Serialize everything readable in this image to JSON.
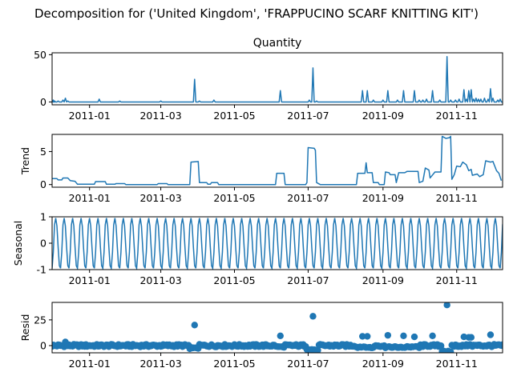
{
  "figure_title": "Decomposition for ('United Kingdom', 'FRAPPUCINO SCARF KNITTING KIT')",
  "colors": {
    "line": "#1f77b4",
    "marker": "#1f77b4",
    "axis": "#000000"
  },
  "chart_data": [
    {
      "type": "line",
      "title": "Quantity",
      "ylabel": "",
      "x_range": [
        "2010-12-01",
        "2011-12-09"
      ],
      "ylim": [
        -3,
        52
      ],
      "yticks": [
        0,
        50
      ],
      "xticks": [
        "2011-01",
        "2011-03",
        "2011-05",
        "2011-07",
        "2011-09",
        "2011-11"
      ],
      "baseline": 0,
      "series": [
        {
          "name": "",
          "spikes": [
            {
              "x": "2010-12-02",
              "y": 2
            },
            {
              "x": "2010-12-03",
              "y": 1
            },
            {
              "x": "2010-12-06",
              "y": 1
            },
            {
              "x": "2010-12-10",
              "y": 2
            },
            {
              "x": "2010-12-12",
              "y": 4
            },
            {
              "x": "2010-12-14",
              "y": 1
            },
            {
              "x": "2011-01-09",
              "y": 3
            },
            {
              "x": "2011-01-26",
              "y": 1
            },
            {
              "x": "2011-03-01",
              "y": 1
            },
            {
              "x": "2011-03-29",
              "y": 24
            },
            {
              "x": "2011-04-02",
              "y": 1
            },
            {
              "x": "2011-04-14",
              "y": 2
            },
            {
              "x": "2011-06-08",
              "y": 12
            },
            {
              "x": "2011-07-02",
              "y": 2
            },
            {
              "x": "2011-07-05",
              "y": 36
            },
            {
              "x": "2011-07-08",
              "y": 1
            },
            {
              "x": "2011-08-15",
              "y": 12
            },
            {
              "x": "2011-08-19",
              "y": 12
            },
            {
              "x": "2011-08-24",
              "y": 2
            },
            {
              "x": "2011-09-01",
              "y": 2
            },
            {
              "x": "2011-09-05",
              "y": 12
            },
            {
              "x": "2011-09-13",
              "y": 2
            },
            {
              "x": "2011-09-18",
              "y": 12
            },
            {
              "x": "2011-09-27",
              "y": 12
            },
            {
              "x": "2011-10-01",
              "y": 2
            },
            {
              "x": "2011-10-04",
              "y": 2
            },
            {
              "x": "2011-10-07",
              "y": 3
            },
            {
              "x": "2011-10-12",
              "y": 12
            },
            {
              "x": "2011-10-18",
              "y": 2
            },
            {
              "x": "2011-10-24",
              "y": 48
            },
            {
              "x": "2011-10-27",
              "y": 2
            },
            {
              "x": "2011-10-31",
              "y": 2
            },
            {
              "x": "2011-11-03",
              "y": 3
            },
            {
              "x": "2011-11-07",
              "y": 13
            },
            {
              "x": "2011-11-09",
              "y": 3
            },
            {
              "x": "2011-11-11",
              "y": 12
            },
            {
              "x": "2011-11-13",
              "y": 13
            },
            {
              "x": "2011-11-15",
              "y": 3
            },
            {
              "x": "2011-11-17",
              "y": 4
            },
            {
              "x": "2011-11-19",
              "y": 3
            },
            {
              "x": "2011-11-21",
              "y": 3
            },
            {
              "x": "2011-11-24",
              "y": 4
            },
            {
              "x": "2011-11-27",
              "y": 3
            },
            {
              "x": "2011-11-29",
              "y": 14
            },
            {
              "x": "2011-12-01",
              "y": 4
            },
            {
              "x": "2011-12-05",
              "y": 2
            },
            {
              "x": "2011-12-07",
              "y": 3
            }
          ]
        }
      ]
    },
    {
      "type": "line",
      "title": "",
      "ylabel": "Trend",
      "x_range": [
        "2010-12-01",
        "2011-12-09"
      ],
      "ylim": [
        -0.4,
        7.6
      ],
      "yticks": [
        0,
        5
      ],
      "xticks": [
        "2011-01",
        "2011-03",
        "2011-05",
        "2011-07",
        "2011-09",
        "2011-11"
      ],
      "series": [
        {
          "name": "",
          "points": [
            [
              "2010-12-01",
              0.9
            ],
            [
              "2010-12-05",
              0.9
            ],
            [
              "2010-12-06",
              0.7
            ],
            [
              "2010-12-09",
              0.7
            ],
            [
              "2010-12-10",
              1.0
            ],
            [
              "2010-12-14",
              1.0
            ],
            [
              "2010-12-16",
              0.6
            ],
            [
              "2010-12-20",
              0.5
            ],
            [
              "2010-12-22",
              0.05
            ],
            [
              "2011-01-05",
              0.05
            ],
            [
              "2011-01-06",
              0.45
            ],
            [
              "2011-01-14",
              0.45
            ],
            [
              "2011-01-15",
              0.05
            ],
            [
              "2011-01-22",
              0.05
            ],
            [
              "2011-01-23",
              0.15
            ],
            [
              "2011-01-30",
              0.15
            ],
            [
              "2011-01-31",
              0.0
            ],
            [
              "2011-02-26",
              0.0
            ],
            [
              "2011-02-27",
              0.15
            ],
            [
              "2011-03-06",
              0.15
            ],
            [
              "2011-03-07",
              0.0
            ],
            [
              "2011-03-25",
              0.0
            ],
            [
              "2011-03-26",
              3.4
            ],
            [
              "2011-04-01",
              3.5
            ],
            [
              "2011-04-02",
              0.3
            ],
            [
              "2011-04-08",
              0.3
            ],
            [
              "2011-04-09",
              0.05
            ],
            [
              "2011-04-11",
              0.05
            ],
            [
              "2011-04-12",
              0.3
            ],
            [
              "2011-04-17",
              0.3
            ],
            [
              "2011-04-18",
              0.0
            ],
            [
              "2011-06-04",
              0.0
            ],
            [
              "2011-06-05",
              1.7
            ],
            [
              "2011-06-11",
              1.7
            ],
            [
              "2011-06-12",
              0.0
            ],
            [
              "2011-06-29",
              0.0
            ],
            [
              "2011-06-30",
              0.3
            ],
            [
              "2011-07-01",
              5.6
            ],
            [
              "2011-07-06",
              5.5
            ],
            [
              "2011-07-07",
              5.2
            ],
            [
              "2011-07-08",
              0.3
            ],
            [
              "2011-07-11",
              0.0
            ],
            [
              "2011-08-10",
              0.0
            ],
            [
              "2011-08-11",
              1.7
            ],
            [
              "2011-08-17",
              1.7
            ],
            [
              "2011-08-18",
              3.3
            ],
            [
              "2011-08-19",
              1.8
            ],
            [
              "2011-08-23",
              1.8
            ],
            [
              "2011-08-24",
              0.3
            ],
            [
              "2011-08-28",
              0.3
            ],
            [
              "2011-08-29",
              0.0
            ],
            [
              "2011-09-02",
              0.0
            ],
            [
              "2011-09-03",
              1.9
            ],
            [
              "2011-09-06",
              1.8
            ],
            [
              "2011-09-07",
              1.5
            ],
            [
              "2011-09-11",
              1.5
            ],
            [
              "2011-09-12",
              0.3
            ],
            [
              "2011-09-14",
              1.8
            ],
            [
              "2011-09-19",
              1.8
            ],
            [
              "2011-09-21",
              2.0
            ],
            [
              "2011-09-30",
              2.0
            ],
            [
              "2011-10-01",
              0.3
            ],
            [
              "2011-10-04",
              0.5
            ],
            [
              "2011-10-06",
              2.5
            ],
            [
              "2011-10-09",
              2.2
            ],
            [
              "2011-10-10",
              1.0
            ],
            [
              "2011-10-14",
              1.9
            ],
            [
              "2011-10-19",
              1.9
            ],
            [
              "2011-10-20",
              7.3
            ],
            [
              "2011-10-23",
              7.0
            ],
            [
              "2011-10-26",
              7.1
            ],
            [
              "2011-10-27",
              7.3
            ],
            [
              "2011-10-28",
              0.8
            ],
            [
              "2011-10-30",
              1.5
            ],
            [
              "2011-11-01",
              2.8
            ],
            [
              "2011-11-04",
              2.7
            ],
            [
              "2011-11-06",
              3.4
            ],
            [
              "2011-11-09",
              3.0
            ],
            [
              "2011-11-11",
              2.1
            ],
            [
              "2011-11-13",
              2.3
            ],
            [
              "2011-11-14",
              1.4
            ],
            [
              "2011-11-18",
              1.6
            ],
            [
              "2011-11-20",
              1.2
            ],
            [
              "2011-11-23",
              1.5
            ],
            [
              "2011-11-25",
              3.6
            ],
            [
              "2011-11-29",
              3.4
            ],
            [
              "2011-12-01",
              3.5
            ],
            [
              "2011-12-04",
              2.1
            ],
            [
              "2011-12-06",
              1.7
            ],
            [
              "2011-12-08",
              0.6
            ]
          ]
        }
      ]
    },
    {
      "type": "line",
      "title": "",
      "ylabel": "Seasonal",
      "x_range": [
        "2010-12-01",
        "2011-12-09"
      ],
      "ylim": [
        -1,
        1
      ],
      "yticks": [
        -1,
        0,
        1
      ],
      "xticks": [
        "2011-01",
        "2011-03",
        "2011-05",
        "2011-07",
        "2011-09",
        "2011-11"
      ],
      "series": [
        {
          "name": "",
          "period_days": 7,
          "weekly_pattern": [
            -0.95,
            -0.35,
            0.7,
            0.95,
            0.65,
            -0.15,
            -0.85
          ]
        }
      ]
    },
    {
      "type": "scatter",
      "title": "",
      "ylabel": "Resid",
      "x_range": [
        "2010-12-01",
        "2011-12-09"
      ],
      "ylim": [
        -7,
        42
      ],
      "yticks": [
        0,
        25
      ],
      "xticks": [
        "2011-01",
        "2011-03",
        "2011-05",
        "2011-07",
        "2011-09",
        "2011-11"
      ],
      "baseline_spread": 1.2,
      "dip_periods": [
        {
          "from": "2011-03-25",
          "to": "2011-04-01",
          "y": -2.5
        },
        {
          "from": "2011-06-05",
          "to": "2011-06-11",
          "y": -1.5
        },
        {
          "from": "2011-06-30",
          "to": "2011-07-09",
          "y": -4.5
        },
        {
          "from": "2011-08-10",
          "to": "2011-08-24",
          "y": -1.5
        },
        {
          "from": "2011-09-03",
          "to": "2011-10-01",
          "y": -1.5
        },
        {
          "from": "2011-10-20",
          "to": "2011-10-27",
          "y": -5.5
        }
      ],
      "outliers": [
        {
          "x": "2010-12-12",
          "y": 3.5
        },
        {
          "x": "2011-03-29",
          "y": 20
        },
        {
          "x": "2011-06-08",
          "y": 9.5
        },
        {
          "x": "2011-07-05",
          "y": 28.5
        },
        {
          "x": "2011-08-15",
          "y": 9
        },
        {
          "x": "2011-08-19",
          "y": 9
        },
        {
          "x": "2011-09-05",
          "y": 10
        },
        {
          "x": "2011-09-18",
          "y": 9.5
        },
        {
          "x": "2011-09-27",
          "y": 8.5
        },
        {
          "x": "2011-10-12",
          "y": 9.5
        },
        {
          "x": "2011-10-24",
          "y": 39.5
        },
        {
          "x": "2011-11-07",
          "y": 8.5
        },
        {
          "x": "2011-11-11",
          "y": 8
        },
        {
          "x": "2011-11-13",
          "y": 8
        },
        {
          "x": "2011-11-29",
          "y": 10.5
        }
      ]
    }
  ]
}
